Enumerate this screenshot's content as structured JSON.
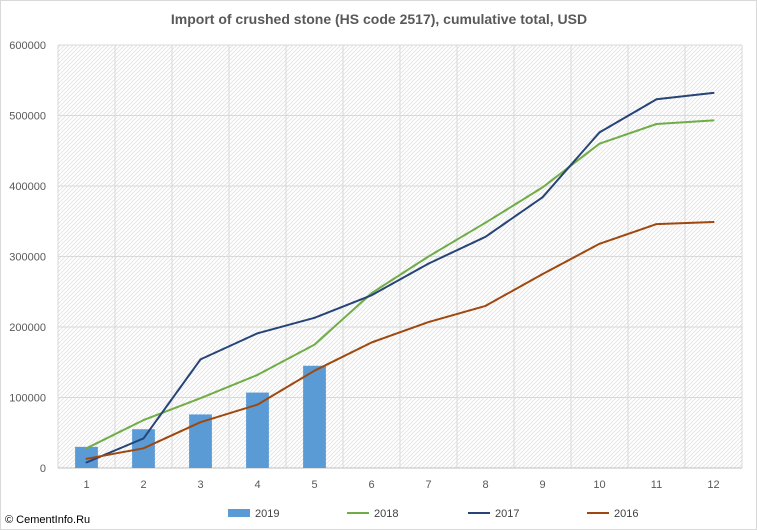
{
  "source_credit": "© CementInfo.Ru",
  "chart_data": {
    "type": "bar+line",
    "title": "Import of crushed stone (HS code 2517), cumulative total, USD",
    "xlabel": "",
    "ylabel": "",
    "categories": [
      "1",
      "2",
      "3",
      "4",
      "5",
      "6",
      "7",
      "8",
      "9",
      "10",
      "11",
      "12"
    ],
    "ylim": [
      0,
      600000
    ],
    "yticks": [
      "0",
      "100000",
      "200000",
      "300000",
      "400000",
      "500000",
      "600000"
    ],
    "grid": true,
    "legend_position": "bottom",
    "series": [
      {
        "name": "2019",
        "type": "bar",
        "color": "#5b9bd5",
        "values": [
          30000,
          55000,
          76000,
          107000,
          145000,
          null,
          null,
          null,
          null,
          null,
          null,
          null
        ]
      },
      {
        "name": "2018",
        "type": "line",
        "color": "#70ad47",
        "values": [
          28000,
          68000,
          99000,
          132000,
          175000,
          248000,
          300000,
          348000,
          398000,
          460000,
          488000,
          493000
        ]
      },
      {
        "name": "2017",
        "type": "line",
        "color": "#264478",
        "values": [
          8000,
          42000,
          154000,
          191000,
          213000,
          245000,
          290000,
          328000,
          384000,
          476000,
          523000,
          532000
        ]
      },
      {
        "name": "2016",
        "type": "line",
        "color": "#9e480e",
        "values": [
          13000,
          28000,
          65000,
          90000,
          138000,
          178000,
          207000,
          230000,
          275000,
          318000,
          346000,
          349000
        ]
      }
    ]
  }
}
